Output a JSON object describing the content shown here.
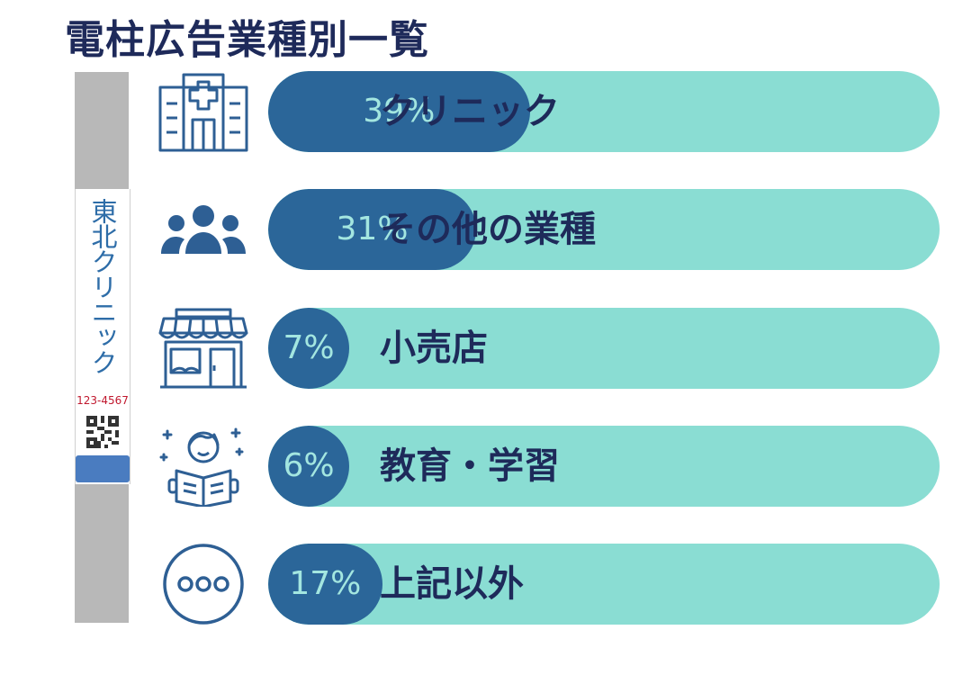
{
  "title": "電柱広告業種別一覧",
  "sign": {
    "name": "東北クリニック",
    "phone": "123-4567"
  },
  "chart_data": {
    "type": "bar",
    "orientation": "horizontal",
    "title": "電柱広告業種別一覧",
    "categories": [
      "クリニック",
      "その他の業種",
      "小売店",
      "教育・学習",
      "上記以外"
    ],
    "values": [
      39,
      31,
      7,
      6,
      17
    ],
    "value_labels": [
      "39%",
      "31%",
      "7%",
      "6%",
      "17%"
    ],
    "unit": "%",
    "icons": [
      "hospital-icon",
      "people-icon",
      "store-icon",
      "student-reading-icon",
      "more-icon"
    ],
    "colors": {
      "fill": "#2b6699",
      "track": "#8addd3",
      "value_text": "#a3e6e0",
      "label_text": "#1e2a5a"
    }
  }
}
